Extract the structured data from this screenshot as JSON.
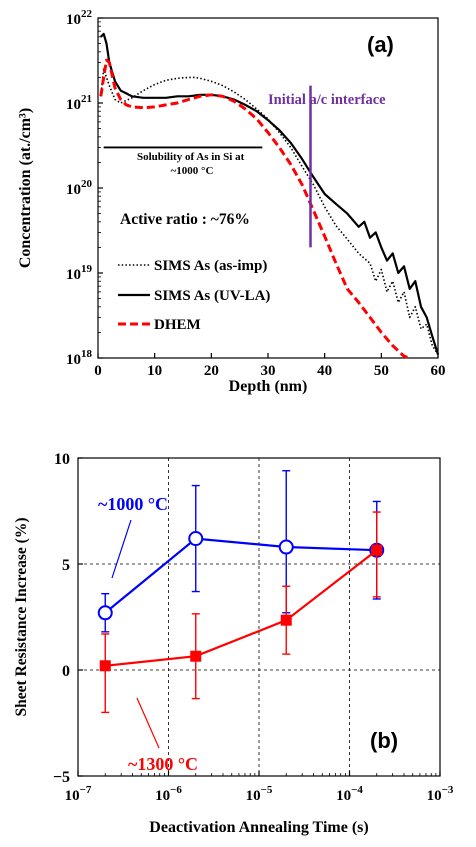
{
  "chart_data": [
    {
      "type": "line",
      "panel_label": "(a)",
      "xlabel": "Depth (nm)",
      "ylabel": "Concentration (at./cm³)",
      "xlim": [
        0,
        60
      ],
      "ylim": [
        1e+18,
        1e+22
      ],
      "yscale": "log",
      "xticks": [
        "0",
        "10",
        "20",
        "30",
        "40",
        "50",
        "60"
      ],
      "yticks": [
        {
          "base": "10",
          "exp": "18"
        },
        {
          "base": "10",
          "exp": "19"
        },
        {
          "base": "10",
          "exp": "20"
        },
        {
          "base": "10",
          "exp": "21"
        },
        {
          "base": "10",
          "exp": "22"
        }
      ],
      "grid": false,
      "legend_position": "bottom-left",
      "series": [
        {
          "name": "SIMS As (as-imp)",
          "style": "dotted",
          "color": "#000000",
          "x": [
            0.5,
            1,
            2,
            3,
            4,
            6,
            8,
            10,
            12,
            14,
            16,
            17,
            18,
            20,
            22,
            24,
            26,
            28,
            30,
            32,
            34,
            36,
            38,
            40,
            42,
            44,
            46,
            48,
            49,
            50,
            51,
            52,
            53,
            54,
            55,
            56,
            57,
            58,
            59,
            60
          ],
          "y": [
            1.2e+21,
            2.5e+21,
            1.6e+21,
            1.1e+21,
            1e+21,
            1.15e+21,
            1.4e+21,
            1.65e+21,
            1.85e+21,
            1.95e+21,
            2e+21,
            2e+21,
            1.95e+21,
            1.8e+21,
            1.6e+21,
            1.35e+21,
            1.1e+21,
            8.5e+20,
            6.5e+20,
            4.5e+20,
            3e+20,
            1.8e+20,
            1.1e+20,
            6e+19,
            3.6e+19,
            2.5e+19,
            1.7e+19,
            1.3e+19,
            8e+18,
            1.1e+19,
            6e+18,
            8e+18,
            4.5e+18,
            6e+18,
            3e+18,
            4e+18,
            2.2e+18,
            2.5e+18,
            1.4e+18,
            1.1e+18
          ]
        },
        {
          "name": "SIMS As (UV-LA)",
          "style": "solid",
          "color": "#000000",
          "x": [
            0.5,
            1,
            1.5,
            2,
            3,
            4,
            6,
            8,
            10,
            12,
            14,
            16,
            18,
            20,
            22,
            24,
            26,
            28,
            30,
            32,
            34,
            36,
            38,
            40,
            42,
            44,
            46,
            47,
            48,
            49,
            50,
            51,
            52,
            53,
            54,
            55,
            56,
            57,
            58,
            59,
            60
          ],
          "y": [
            6e+21,
            6.5e+21,
            5e+21,
            3e+21,
            1.8e+21,
            1.4e+21,
            1.2e+21,
            1.15e+21,
            1.15e+21,
            1.15e+21,
            1.2e+21,
            1.2e+21,
            1.25e+21,
            1.25e+21,
            1.2e+21,
            1.1e+21,
            9.5e+20,
            8e+20,
            6.3e+20,
            4.8e+20,
            3.4e+20,
            2.2e+20,
            1.35e+20,
            8.5e+19,
            6.5e+19,
            5e+19,
            3.5e+19,
            4e+19,
            2.6e+19,
            3e+19,
            2e+19,
            1.4e+19,
            1.7e+19,
            1e+19,
            1.2e+19,
            6.5e+18,
            8e+18,
            4e+18,
            3e+18,
            1.8e+18,
            1.1e+18
          ]
        },
        {
          "name": "DHEM",
          "style": "dashed",
          "color": "#ff0000",
          "x": [
            0.5,
            1,
            1.5,
            2,
            3,
            4,
            5,
            6,
            8,
            10,
            12,
            14,
            16,
            18,
            20,
            22,
            24,
            26,
            28,
            30,
            32,
            34,
            36,
            38,
            40,
            42,
            44,
            46,
            48,
            50,
            52,
            54,
            55
          ],
          "y": [
            1.2e+21,
            2e+21,
            3.2e+21,
            3e+21,
            1.5e+21,
            1.1e+21,
            9.5e+20,
            9e+20,
            8.8e+20,
            9e+20,
            9.5e+20,
            1e+21,
            1.1e+21,
            1.2e+21,
            1.25e+21,
            1.2e+21,
            1.05e+21,
            8.5e+20,
            6.5e+20,
            4.5e+20,
            3e+20,
            1.9e+20,
            1.1e+20,
            5.5e+19,
            2.7e+19,
            1.3e+19,
            6.5e+18,
            4.5e+18,
            3e+18,
            2e+18,
            1.4e+18,
            1.05e+18,
            1e+18
          ]
        }
      ],
      "annotations": [
        {
          "text": "Initial a/c interface",
          "color": "#7030a0",
          "vline_x": 37.5,
          "y_from": 2e+19,
          "y_to": 1.6e+21
        },
        {
          "text": "Solubility of As in Si at ~1000 °C",
          "hline_y": 3e+20,
          "x_from": 1,
          "x_to": 29
        },
        {
          "text": "Active ratio : ~76%"
        }
      ]
    },
    {
      "type": "scatter",
      "panel_label": "(b)",
      "xlabel": "Deactivation Annealing Time (s)",
      "ylabel": "Sheet Resistance Increase (%)",
      "xscale": "log",
      "xlim": [
        1e-07,
        0.001
      ],
      "ylim": [
        -5,
        10
      ],
      "xticks": [
        {
          "base": "10",
          "exp": "−7"
        },
        {
          "base": "10",
          "exp": "−6"
        },
        {
          "base": "10",
          "exp": "−5"
        },
        {
          "base": "10",
          "exp": "−4"
        },
        {
          "base": "10",
          "exp": "−3"
        }
      ],
      "yticks": [
        "−5",
        "0",
        "5",
        "10"
      ],
      "grid": true,
      "series": [
        {
          "name": "~1000 °C",
          "color": "#0000ff",
          "marker": "circle-open",
          "x": [
            2e-07,
            2e-06,
            2e-05,
            0.0002
          ],
          "y": [
            2.7,
            6.2,
            5.8,
            5.65
          ],
          "err_lower": [
            0.9,
            2.5,
            3.1,
            2.3
          ],
          "err_upper": [
            0.9,
            2.5,
            3.6,
            2.3
          ]
        },
        {
          "name": "~1300 °C",
          "color": "#ff0000",
          "marker": "square-filled",
          "x": [
            2e-07,
            2e-06,
            2e-05,
            0.0002
          ],
          "y": [
            0.2,
            0.65,
            2.35,
            5.65
          ],
          "err_lower": [
            2.2,
            2.0,
            1.6,
            2.2
          ],
          "err_upper": [
            1.5,
            2.0,
            1.6,
            1.8
          ]
        }
      ]
    }
  ]
}
